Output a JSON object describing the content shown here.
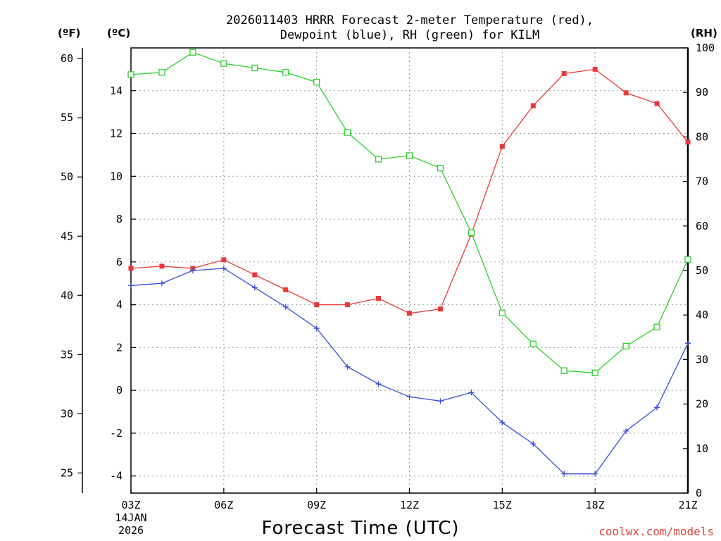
{
  "chart_data": {
    "type": "line",
    "title_line1": "2026011403 HRRR Forecast 2-meter Temperature (red),",
    "title_line2": "Dewpoint (blue), RH (green) for KILM",
    "xlabel": "Forecast Time (UTC)",
    "date_line1": "14JAN",
    "date_line2": "2026",
    "credit": "coolwx.com/models",
    "axes": {
      "fahrenheit": {
        "unit_label": "(ºF)",
        "range": [
          23.3,
          60.9
        ],
        "ticks": [
          25,
          30,
          35,
          40,
          45,
          50,
          55,
          60
        ]
      },
      "celsius": {
        "unit_label": "(ºC)",
        "range": [
          -4.8,
          16.0
        ],
        "ticks": [
          -4,
          -2,
          0,
          2,
          4,
          6,
          8,
          10,
          12,
          14
        ]
      },
      "rh": {
        "unit_label": "(RH)",
        "range": [
          0,
          100
        ],
        "ticks": [
          0,
          10,
          20,
          30,
          40,
          50,
          60,
          70,
          80,
          90,
          100
        ]
      }
    },
    "x": {
      "range": [
        3,
        21
      ],
      "hours": [
        3,
        4,
        5,
        6,
        7,
        8,
        9,
        10,
        11,
        12,
        13,
        14,
        15,
        16,
        17,
        18,
        19,
        20,
        21
      ],
      "tick_hours": [
        3,
        6,
        9,
        12,
        15,
        18,
        21
      ],
      "tick_labels": [
        "03Z",
        "06Z",
        "09Z",
        "12Z",
        "15Z",
        "18Z",
        "21Z"
      ]
    },
    "series": [
      {
        "name": "Temperature",
        "axis": "celsius",
        "color": "#e8393a",
        "marker": "filled-square",
        "values": [
          5.7,
          5.8,
          5.7,
          6.1,
          5.4,
          4.7,
          4.0,
          4.0,
          4.3,
          3.6,
          3.8,
          7.3,
          11.4,
          13.3,
          14.8,
          15.0,
          13.9,
          13.4,
          11.6
        ]
      },
      {
        "name": "Dewpoint",
        "axis": "celsius",
        "color": "#3a4fd8",
        "marker": "plus",
        "values": [
          4.9,
          5.0,
          5.6,
          5.7,
          4.8,
          3.9,
          2.9,
          1.1,
          0.3,
          -0.3,
          -0.5,
          -0.1,
          -1.5,
          -2.5,
          -3.9,
          -3.9,
          -1.9,
          -0.8,
          2.2
        ]
      },
      {
        "name": "RH",
        "axis": "rh",
        "color": "#2fd02f",
        "marker": "open-square",
        "values": [
          94,
          94.5,
          99,
          96.5,
          95.5,
          94.5,
          92.3,
          81,
          75,
          75.8,
          73,
          58.5,
          40.5,
          33.5,
          27.5,
          27,
          33,
          37.3,
          52.5
        ]
      }
    ]
  }
}
